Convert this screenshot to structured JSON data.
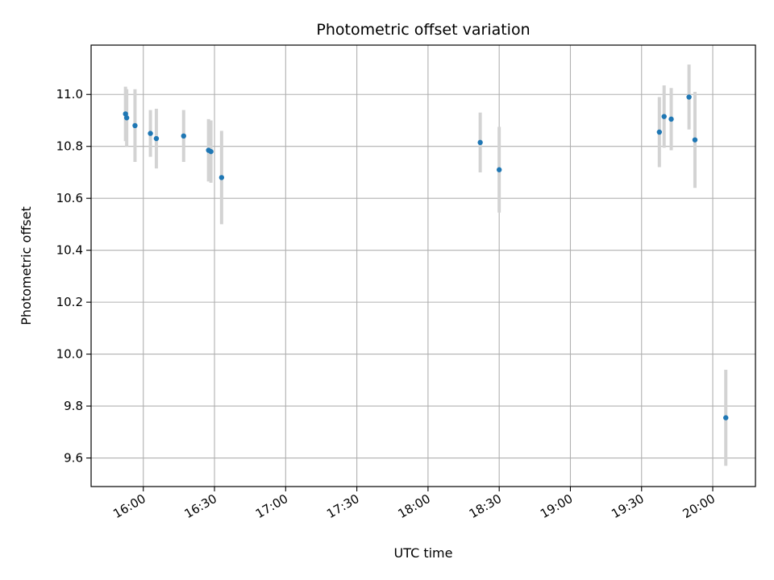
{
  "chart_data": {
    "type": "scatter",
    "title": "Photometric offset variation",
    "xlabel": "UTC time",
    "ylabel": "Photometric offset",
    "x_unit": "UTC time (HH:MM)",
    "xlim": [
      "15:38",
      "20:18"
    ],
    "ylim": [
      9.49,
      11.19
    ],
    "xticks": [
      "16:00",
      "16:30",
      "17:00",
      "17:30",
      "18:00",
      "18:30",
      "19:00",
      "19:30",
      "20:00"
    ],
    "yticks": [
      "9.6",
      "9.8",
      "10.0",
      "10.2",
      "10.4",
      "10.6",
      "10.8",
      "11.0"
    ],
    "grid": true,
    "marker_color": "#1f77b4",
    "errorbar_color": "#d3d3d3",
    "points": [
      {
        "x": "15:52:30",
        "y": 10.925,
        "err": 0.105
      },
      {
        "x": "15:53:00",
        "y": 10.91,
        "err": 0.11
      },
      {
        "x": "15:56:30",
        "y": 10.88,
        "err": 0.14
      },
      {
        "x": "16:03:00",
        "y": 10.85,
        "err": 0.09
      },
      {
        "x": "16:05:30",
        "y": 10.83,
        "err": 0.115
      },
      {
        "x": "16:17:00",
        "y": 10.84,
        "err": 0.1
      },
      {
        "x": "16:27:30",
        "y": 10.785,
        "err": 0.12
      },
      {
        "x": "16:28:30",
        "y": 10.78,
        "err": 0.12
      },
      {
        "x": "16:33:00",
        "y": 10.68,
        "err": 0.18
      },
      {
        "x": "18:22:00",
        "y": 10.815,
        "err": 0.115
      },
      {
        "x": "18:30:00",
        "y": 10.71,
        "err": 0.165
      },
      {
        "x": "19:37:30",
        "y": 10.855,
        "err": 0.135
      },
      {
        "x": "19:39:30",
        "y": 10.915,
        "err": 0.12
      },
      {
        "x": "19:42:30",
        "y": 10.905,
        "err": 0.12
      },
      {
        "x": "19:50:00",
        "y": 10.99,
        "err": 0.125
      },
      {
        "x": "19:52:30",
        "y": 10.825,
        "err": 0.185
      },
      {
        "x": "20:05:30",
        "y": 9.755,
        "err": 0.185
      }
    ]
  }
}
